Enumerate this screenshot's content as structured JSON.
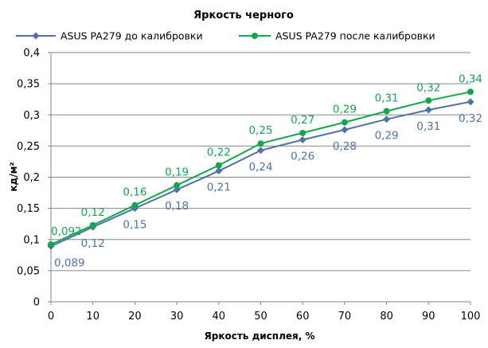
{
  "chart_data": {
    "type": "line",
    "title": "Яркость черного",
    "xlabel": "Яркость дисплея, %",
    "ylabel": "кд/м²",
    "x": [
      0,
      10,
      20,
      30,
      40,
      50,
      60,
      70,
      80,
      90,
      100
    ],
    "xlim": [
      0,
      100
    ],
    "ylim": [
      0,
      0.4
    ],
    "x_ticks": [
      "0",
      "10",
      "20",
      "30",
      "40",
      "50",
      "60",
      "70",
      "80",
      "90",
      "100"
    ],
    "y_ticks": [
      "0",
      "0,05",
      "0,1",
      "0,15",
      "0,2",
      "0,25",
      "0,3",
      "0,35",
      "0,4"
    ],
    "grid": "horizontal",
    "legend_position": "top",
    "series": [
      {
        "name": "ASUS PA279 до калибровки",
        "color": "#4f72a6",
        "marker": "diamond",
        "values": [
          0.089,
          0.12,
          0.15,
          0.18,
          0.21,
          0.243,
          0.26,
          0.276,
          0.293,
          0.308,
          0.321
        ],
        "labels": [
          "0,089",
          "0,12",
          "0,15",
          "0,18",
          "0,21",
          "0,24",
          "0,26",
          "0,28",
          "0,29",
          "0,31",
          "0,32"
        ]
      },
      {
        "name": "ASUS PA279 после калибровки",
        "color": "#13a650",
        "marker": "circle",
        "values": [
          0.092,
          0.123,
          0.155,
          0.187,
          0.219,
          0.254,
          0.271,
          0.288,
          0.306,
          0.323,
          0.337
        ],
        "labels": [
          "0,092",
          "0,12",
          "0,16",
          "0,19",
          "0,22",
          "0,25",
          "0,27",
          "0,29",
          "0,31",
          "0,32",
          "0,34"
        ]
      }
    ]
  }
}
